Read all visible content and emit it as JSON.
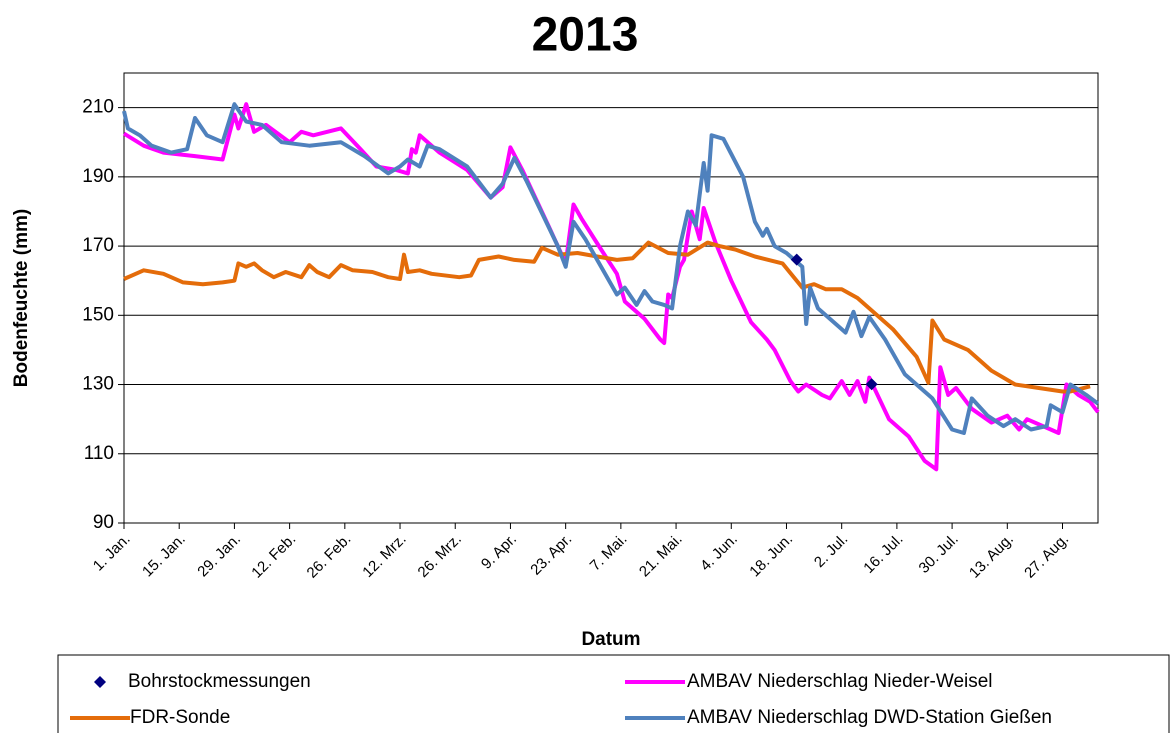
{
  "chart_data": {
    "type": "line",
    "title": "2013",
    "y_label": "Bodenfeuchte (mm)",
    "x_label": "Datum",
    "xlim": [
      0,
      247
    ],
    "ylim": [
      90,
      220
    ],
    "yticks": [
      90,
      110,
      130,
      150,
      170,
      190,
      210
    ],
    "grid": true,
    "xticks": [
      {
        "value": 0,
        "label": "1. Jan."
      },
      {
        "value": 14,
        "label": "15. Jan."
      },
      {
        "value": 28,
        "label": "29. Jan."
      },
      {
        "value": 42,
        "label": "12. Feb."
      },
      {
        "value": 56,
        "label": "26. Feb."
      },
      {
        "value": 70,
        "label": "12. Mrz."
      },
      {
        "value": 84,
        "label": "26. Mrz."
      },
      {
        "value": 98,
        "label": "9. Apr."
      },
      {
        "value": 112,
        "label": "23. Apr."
      },
      {
        "value": 126,
        "label": "7. Mai."
      },
      {
        "value": 140,
        "label": "21. Mai."
      },
      {
        "value": 154,
        "label": "4. Jun."
      },
      {
        "value": 168,
        "label": "18. Jun."
      },
      {
        "value": 182,
        "label": "2. Jul."
      },
      {
        "value": 196,
        "label": "16. Jul."
      },
      {
        "value": 210,
        "label": "30. Jul."
      },
      {
        "value": 224,
        "label": "13. Aug."
      },
      {
        "value": 238,
        "label": "27. Aug."
      }
    ],
    "legend": "bottom",
    "series": [
      {
        "name": "Bohrstockmessungen",
        "color": "#000080",
        "kind": "scatter",
        "x": [
          170.6,
          189.6
        ],
        "values": [
          166.1,
          130.1
        ]
      },
      {
        "name": "AMBAV Niederschlag Nieder-Weisel",
        "color": "#ff00ff",
        "kind": "line",
        "x": [
          0,
          5,
          10,
          18,
          25,
          28,
          29,
          31,
          33,
          36,
          42,
          45,
          48,
          55,
          60,
          64,
          69,
          72,
          73,
          74,
          75,
          80,
          87,
          93,
          96,
          98,
          101,
          108,
          112,
          114,
          116,
          121,
          125,
          127,
          132,
          136,
          137,
          138,
          139,
          141,
          142,
          144,
          146,
          147,
          150,
          154,
          159,
          163,
          165,
          169,
          171,
          173,
          177,
          179,
          182,
          184,
          186,
          188,
          189,
          194,
          199,
          203,
          206,
          207,
          209,
          211,
          215,
          220,
          224,
          227,
          229,
          235,
          237,
          239,
          242,
          245,
          247
        ],
        "values": [
          202.5,
          199,
          197,
          196,
          195,
          208,
          204,
          211,
          203,
          205,
          200,
          203,
          202,
          204,
          198,
          193,
          192,
          191,
          198,
          197,
          202,
          197,
          192,
          184,
          187,
          198.5,
          192,
          175,
          165,
          182,
          178,
          169,
          162,
          154,
          149,
          143,
          142,
          156,
          155,
          164,
          166,
          180,
          172,
          181,
          171,
          160,
          148,
          143,
          140,
          131,
          128,
          130,
          127,
          126,
          131,
          127,
          131,
          125,
          132,
          120,
          115,
          108,
          105.5,
          135,
          127,
          129,
          123,
          119,
          121,
          117,
          120,
          117,
          116,
          130,
          127,
          125,
          122
        ]
      },
      {
        "name": "FDR-Sonde",
        "color": "#e46c0a",
        "kind": "line",
        "x": [
          0,
          5,
          10,
          15,
          20,
          25,
          28,
          29,
          31,
          33,
          35,
          38,
          41,
          45,
          47,
          49,
          52,
          55,
          58,
          63,
          67,
          70,
          71,
          72,
          75,
          78,
          85,
          88,
          90,
          95,
          99,
          104,
          106,
          110,
          115,
          120,
          125,
          129,
          133,
          138,
          143,
          148,
          151,
          155,
          160,
          167,
          172,
          175,
          178,
          182,
          186,
          195,
          201,
          204,
          205,
          208,
          214,
          220,
          226,
          232,
          238,
          240,
          245
        ],
        "values": [
          160.5,
          163,
          162,
          159.5,
          159,
          159.5,
          160,
          165,
          164,
          165,
          163,
          161,
          162.5,
          161,
          164.5,
          162.5,
          161,
          164.5,
          163,
          162.5,
          161,
          160.5,
          167.5,
          162.5,
          163,
          162,
          161,
          161.5,
          166,
          167,
          166,
          165.5,
          169.5,
          167.5,
          168,
          167,
          166,
          166.5,
          171,
          168,
          167.5,
          171,
          170,
          169,
          167,
          165,
          158,
          159,
          157.5,
          157.5,
          155,
          146,
          138,
          130.5,
          148.5,
          143,
          140,
          134,
          130,
          129,
          128,
          128,
          129.5
        ]
      },
      {
        "name": "AMBAV Niederschlag DWD-Station Gießen",
        "color": "#4f81bd",
        "kind": "line",
        "x": [
          0,
          1,
          4,
          7,
          12,
          16,
          18,
          21,
          25,
          28,
          31,
          35,
          40,
          47,
          55,
          61,
          67,
          70,
          72,
          75,
          77,
          80,
          87,
          93,
          96,
          99,
          102,
          110,
          112,
          114,
          117,
          121,
          125,
          127,
          130,
          132,
          134,
          137,
          139,
          141,
          143,
          145,
          147,
          148,
          149,
          152,
          157,
          160,
          162,
          163,
          165,
          168,
          172,
          173,
          174,
          176,
          180,
          183,
          185,
          187,
          189,
          193,
          198,
          205,
          210,
          213,
          215,
          219,
          223,
          226,
          230,
          234,
          235,
          238,
          240,
          244,
          247
        ],
        "values": [
          209,
          204,
          202,
          199,
          197,
          198,
          207,
          202,
          200,
          211,
          206,
          205,
          200,
          199,
          200,
          196,
          191,
          193,
          195,
          193,
          199,
          198,
          193,
          184,
          188,
          195.5,
          189,
          170,
          164,
          177,
          172,
          164,
          156,
          158,
          153,
          157,
          154,
          153,
          152,
          170,
          180,
          176,
          194,
          186,
          202,
          201,
          190,
          177,
          173,
          175,
          170,
          168,
          164,
          147.5,
          158,
          152,
          148,
          145,
          151,
          144,
          149.5,
          143,
          133,
          126,
          117,
          116,
          126,
          121,
          118,
          120,
          117,
          118,
          124,
          122,
          130,
          127,
          124.5
        ]
      }
    ]
  }
}
